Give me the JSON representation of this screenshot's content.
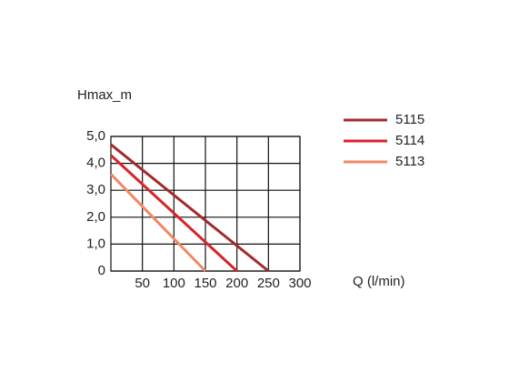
{
  "chart_data": {
    "type": "line",
    "y_label": "Hmax_m",
    "x_label": "Q (l/min)",
    "xlim": [
      0,
      300
    ],
    "xticks": [
      50,
      100,
      150,
      200,
      250,
      300
    ],
    "ylim": [
      0,
      5
    ],
    "yticks": [
      0,
      {
        "value": 1,
        "label": "1,0"
      },
      {
        "value": 2,
        "label": "2,0"
      },
      {
        "value": 3,
        "label": "3,0"
      },
      {
        "value": 4,
        "label": "4,0"
      },
      {
        "value": 5,
        "label": "5,0"
      }
    ],
    "grid": true,
    "legend": "right",
    "series": [
      {
        "name": "5115",
        "color": "#a32a2c",
        "x": [
          0,
          250
        ],
        "values": [
          4.7,
          0
        ]
      },
      {
        "name": "5114",
        "color": "#d8232a",
        "x": [
          0,
          200
        ],
        "values": [
          4.3,
          0
        ]
      },
      {
        "name": "5113",
        "color": "#ef8a63",
        "x": [
          0,
          150
        ],
        "values": [
          3.6,
          0
        ]
      }
    ]
  }
}
